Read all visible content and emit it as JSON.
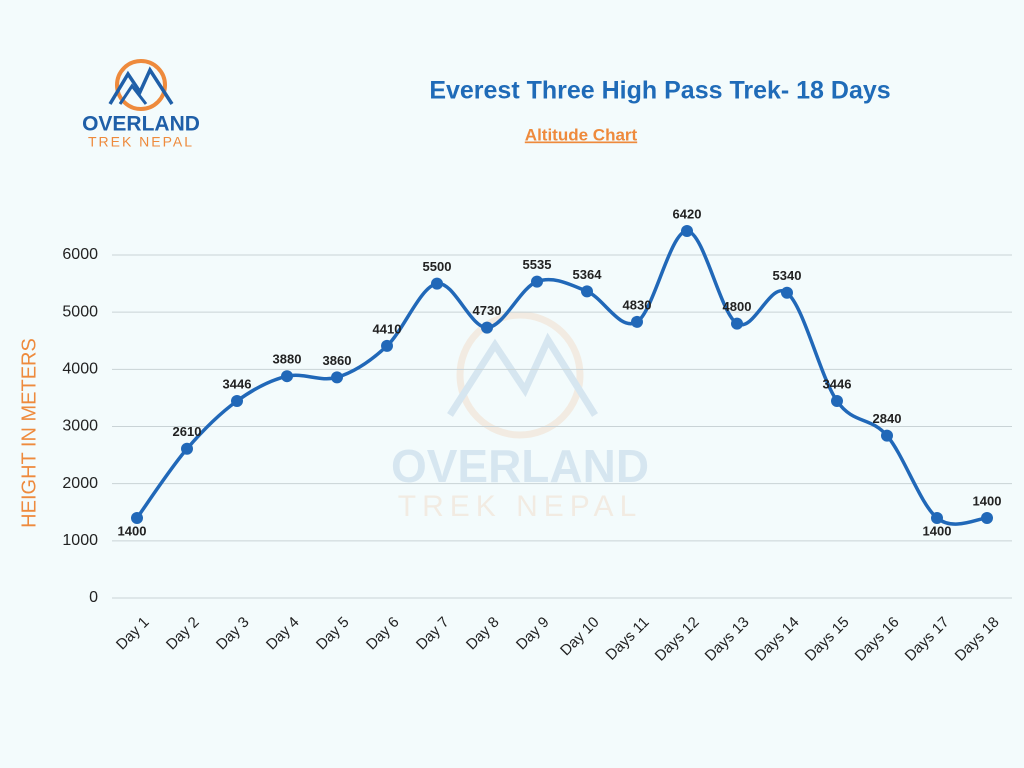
{
  "logo": {
    "name": "OVERLAND",
    "tagline": "TREK NEPAL"
  },
  "chart_data": {
    "type": "line",
    "title": "Everest Three High Pass Trek- 18 Days",
    "subtitle": "Altitude Chart",
    "y_label": "HEIGHT IN METERS",
    "categories": [
      "Day 1",
      "Day 2",
      "Day 3",
      "Day 4",
      "Day 5",
      "Day 6",
      "Day 7",
      "Day 8",
      "Day 9",
      "Day 10",
      "Days 11",
      "Days 12",
      "Days 13",
      "Days 14",
      "Days 15",
      "Days 16",
      "Days 17",
      "Days 18"
    ],
    "values": [
      1400,
      2610,
      3446,
      3880,
      3860,
      4410,
      5500,
      4730,
      5535,
      5364,
      4830,
      6420,
      4800,
      5340,
      3446,
      2840,
      1400,
      1400
    ],
    "color": "#2168b8",
    "ylim": [
      0,
      6000
    ],
    "yticks": [
      0,
      1000,
      2000,
      3000,
      4000,
      5000,
      6000
    ],
    "grid": true
  }
}
